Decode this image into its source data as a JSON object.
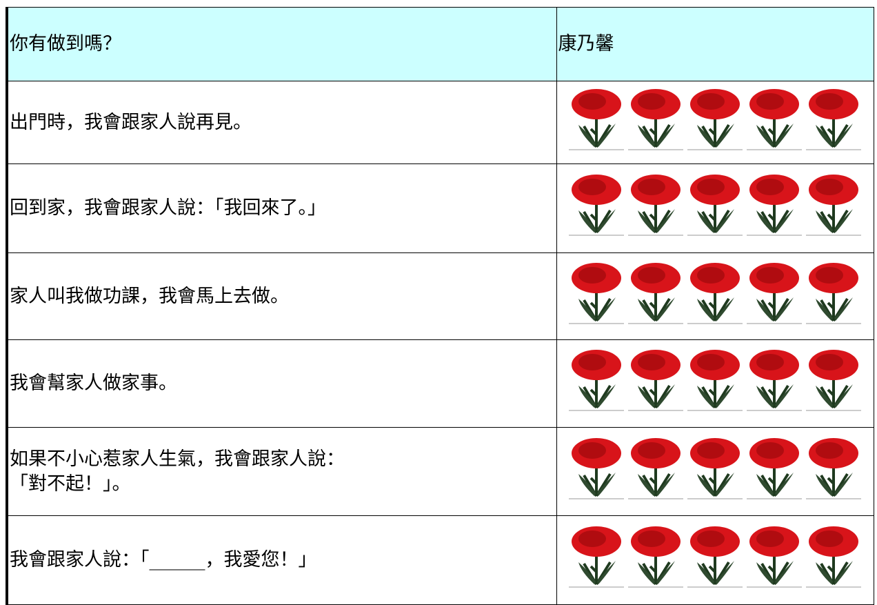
{
  "header": {
    "columns": [
      "你有做到嗎？",
      "康乃馨"
    ]
  },
  "rows": [
    [
      "出門時，我會跟家人說再見。"
    ],
    [
      "回到家，我會跟家人說：「我回來了。」"
    ],
    [
      "家人叫我做功課，我會馬上去做。"
    ],
    [
      "我會幫家人做家事。"
    ],
    [
      "如果不小心惹家人生氣，我會跟家人說：",
      "「對不起！」。"
    ],
    [
      "我會跟家人說：「______，我愛您！」"
    ]
  ]
}
